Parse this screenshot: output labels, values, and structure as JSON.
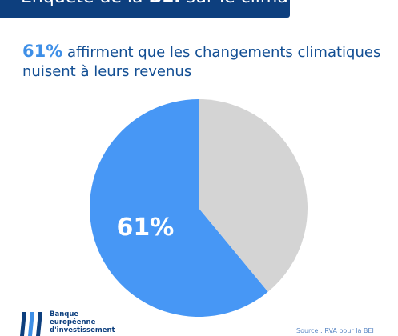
{
  "banner": {
    "title_pre": "Enquête de la ",
    "title_bold": "BEI",
    "title_post": " sur le climat"
  },
  "headline": {
    "percent": "61%",
    "text": " affirment que les changements climatiques nuisent à leurs revenus"
  },
  "chart_data": {
    "type": "pie",
    "categories": [
      "",
      ""
    ],
    "values": [
      61,
      39
    ],
    "colors": [
      "#4797f5",
      "#d4d4d4"
    ],
    "data_labels": [
      "61%",
      ""
    ],
    "title": "",
    "legend": "none"
  },
  "logo": {
    "line1": "Banque",
    "line2": "européenne",
    "line3": "d'investissement"
  },
  "source": "Source : RVA pour la BEI",
  "colors": {
    "navy": "#0d3f7e",
    "accent": "#3e8fe7"
  }
}
